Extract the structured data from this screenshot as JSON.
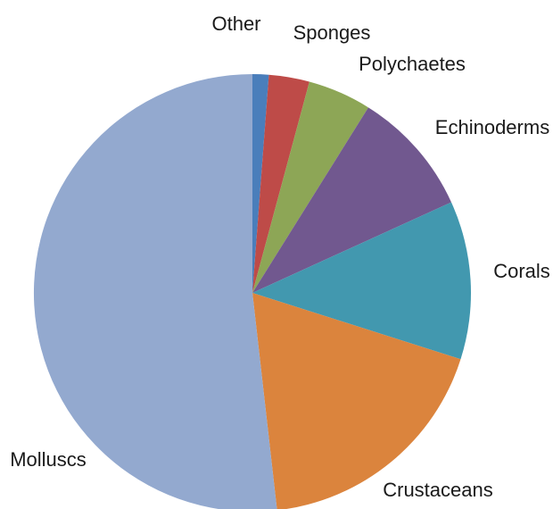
{
  "chart_data": {
    "type": "pie",
    "title": "",
    "start_angle_deg": 0,
    "direction": "clockwise",
    "legend": "none",
    "slices": [
      {
        "label": "Other",
        "value": 1.2,
        "color": "#4A7EBB"
      },
      {
        "label": "Sponges",
        "value": 3.0,
        "color": "#BE4B48"
      },
      {
        "label": "Polychaetes",
        "value": 4.7,
        "color": "#8DA656"
      },
      {
        "label": "Echinoderms",
        "value": 9.3,
        "color": "#71588F"
      },
      {
        "label": "Corals",
        "value": 11.7,
        "color": "#4298AF"
      },
      {
        "label": "Crustaceans",
        "value": 18.3,
        "color": "#DB843D"
      },
      {
        "label": "Molluscs",
        "value": 51.8,
        "color": "#93A9CF"
      }
    ]
  }
}
